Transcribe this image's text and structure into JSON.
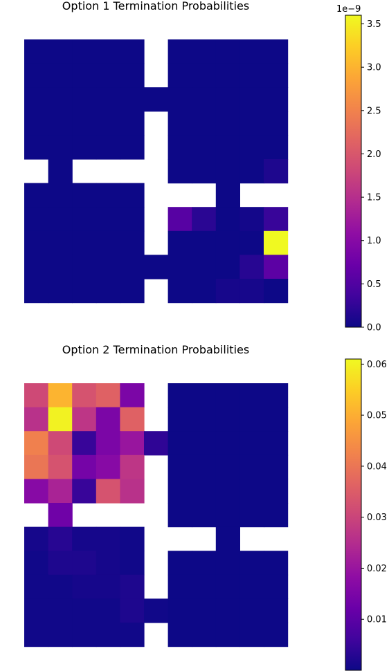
{
  "chart_data": [
    {
      "type": "heatmap",
      "title": "Option 1 Termination Probabilities",
      "colormap": "plasma",
      "colorbar": {
        "min": 0.0,
        "max": 3.6e-09,
        "offset_label": "1e−9",
        "ticks": [
          {
            "value": 0.0,
            "label": "0.0"
          },
          {
            "value": 0.5,
            "label": "0.5"
          },
          {
            "value": 1.0,
            "label": "1.0"
          },
          {
            "value": 1.5,
            "label": "1.5"
          },
          {
            "value": 2.0,
            "label": "2.0"
          },
          {
            "value": 2.5,
            "label": "2.5"
          },
          {
            "value": 3.0,
            "label": "3.0"
          },
          {
            "value": 3.5,
            "label": "3.5"
          }
        ],
        "scale_factor": 1e-09
      },
      "grid": [
        [
          0,
          0,
          0,
          0,
          0,
          null,
          0,
          0,
          0,
          0,
          0
        ],
        [
          0,
          0,
          0,
          0,
          0,
          null,
          0,
          0,
          0,
          0,
          0
        ],
        [
          0,
          0,
          0,
          0,
          0,
          0,
          0,
          0,
          0,
          0,
          0
        ],
        [
          0,
          0,
          0,
          0,
          0,
          null,
          0,
          0,
          0,
          0,
          0
        ],
        [
          0,
          0,
          0,
          0,
          0,
          null,
          0,
          0,
          0,
          0,
          0
        ],
        [
          null,
          0,
          null,
          null,
          null,
          null,
          0,
          0,
          0,
          0,
          0.12
        ],
        [
          0,
          0,
          0,
          0,
          0,
          null,
          null,
          null,
          0,
          null,
          null
        ],
        [
          0,
          0,
          0,
          0,
          0,
          null,
          0.55,
          0.2,
          0,
          0.05,
          0.3
        ],
        [
          0,
          0,
          0,
          0,
          0,
          null,
          0,
          0,
          0,
          0,
          3.6
        ],
        [
          0,
          0,
          0,
          0,
          0,
          0,
          0,
          0,
          0,
          0.18,
          0.6
        ],
        [
          0,
          0,
          0,
          0,
          0,
          null,
          0,
          0,
          0.07,
          0.07,
          0
        ]
      ]
    },
    {
      "type": "heatmap",
      "title": "Option 2 Termination Probabilities",
      "colormap": "plasma",
      "colorbar": {
        "min": 0.0,
        "max": 0.061,
        "ticks": [
          {
            "value": 0.01,
            "label": "0.01"
          },
          {
            "value": 0.02,
            "label": "0.02"
          },
          {
            "value": 0.03,
            "label": "0.03"
          },
          {
            "value": 0.04,
            "label": "0.04"
          },
          {
            "value": 0.05,
            "label": "0.05"
          },
          {
            "value": 0.06,
            "label": "0.06"
          }
        ],
        "scale_factor": 1
      },
      "grid": [
        [
          0.031,
          0.051,
          0.033,
          0.036,
          0.015,
          null,
          0,
          0,
          0,
          0,
          0
        ],
        [
          0.026,
          0.06,
          0.027,
          0.015,
          0.036,
          null,
          0,
          0,
          0,
          0,
          0
        ],
        [
          0.042,
          0.031,
          0.005,
          0.015,
          0.02,
          0.004,
          0,
          0,
          0,
          0,
          0
        ],
        [
          0.04,
          0.033,
          0.014,
          0.017,
          0.027,
          null,
          0,
          0,
          0,
          0,
          0
        ],
        [
          0.017,
          0.023,
          0.005,
          0.033,
          0.026,
          null,
          0,
          0,
          0,
          0,
          0
        ],
        [
          null,
          0.013,
          null,
          null,
          null,
          null,
          0,
          0,
          0,
          0,
          0
        ],
        [
          0.001,
          0.003,
          0.001,
          0.001,
          0.0005,
          null,
          null,
          null,
          0,
          null,
          null
        ],
        [
          0.0005,
          0.002,
          0.002,
          0.001,
          0.0005,
          null,
          0,
          0,
          0,
          0,
          0
        ],
        [
          0.0005,
          0.0005,
          0.001,
          0.001,
          0.002,
          null,
          0,
          0,
          0,
          0,
          0
        ],
        [
          0.0005,
          0.0005,
          0.0005,
          0.0005,
          0.002,
          0.0005,
          0,
          0,
          0,
          0,
          0
        ],
        [
          0.0005,
          0.0005,
          0.0005,
          0.0005,
          0.0005,
          null,
          0,
          0,
          0,
          0,
          0
        ]
      ]
    }
  ]
}
